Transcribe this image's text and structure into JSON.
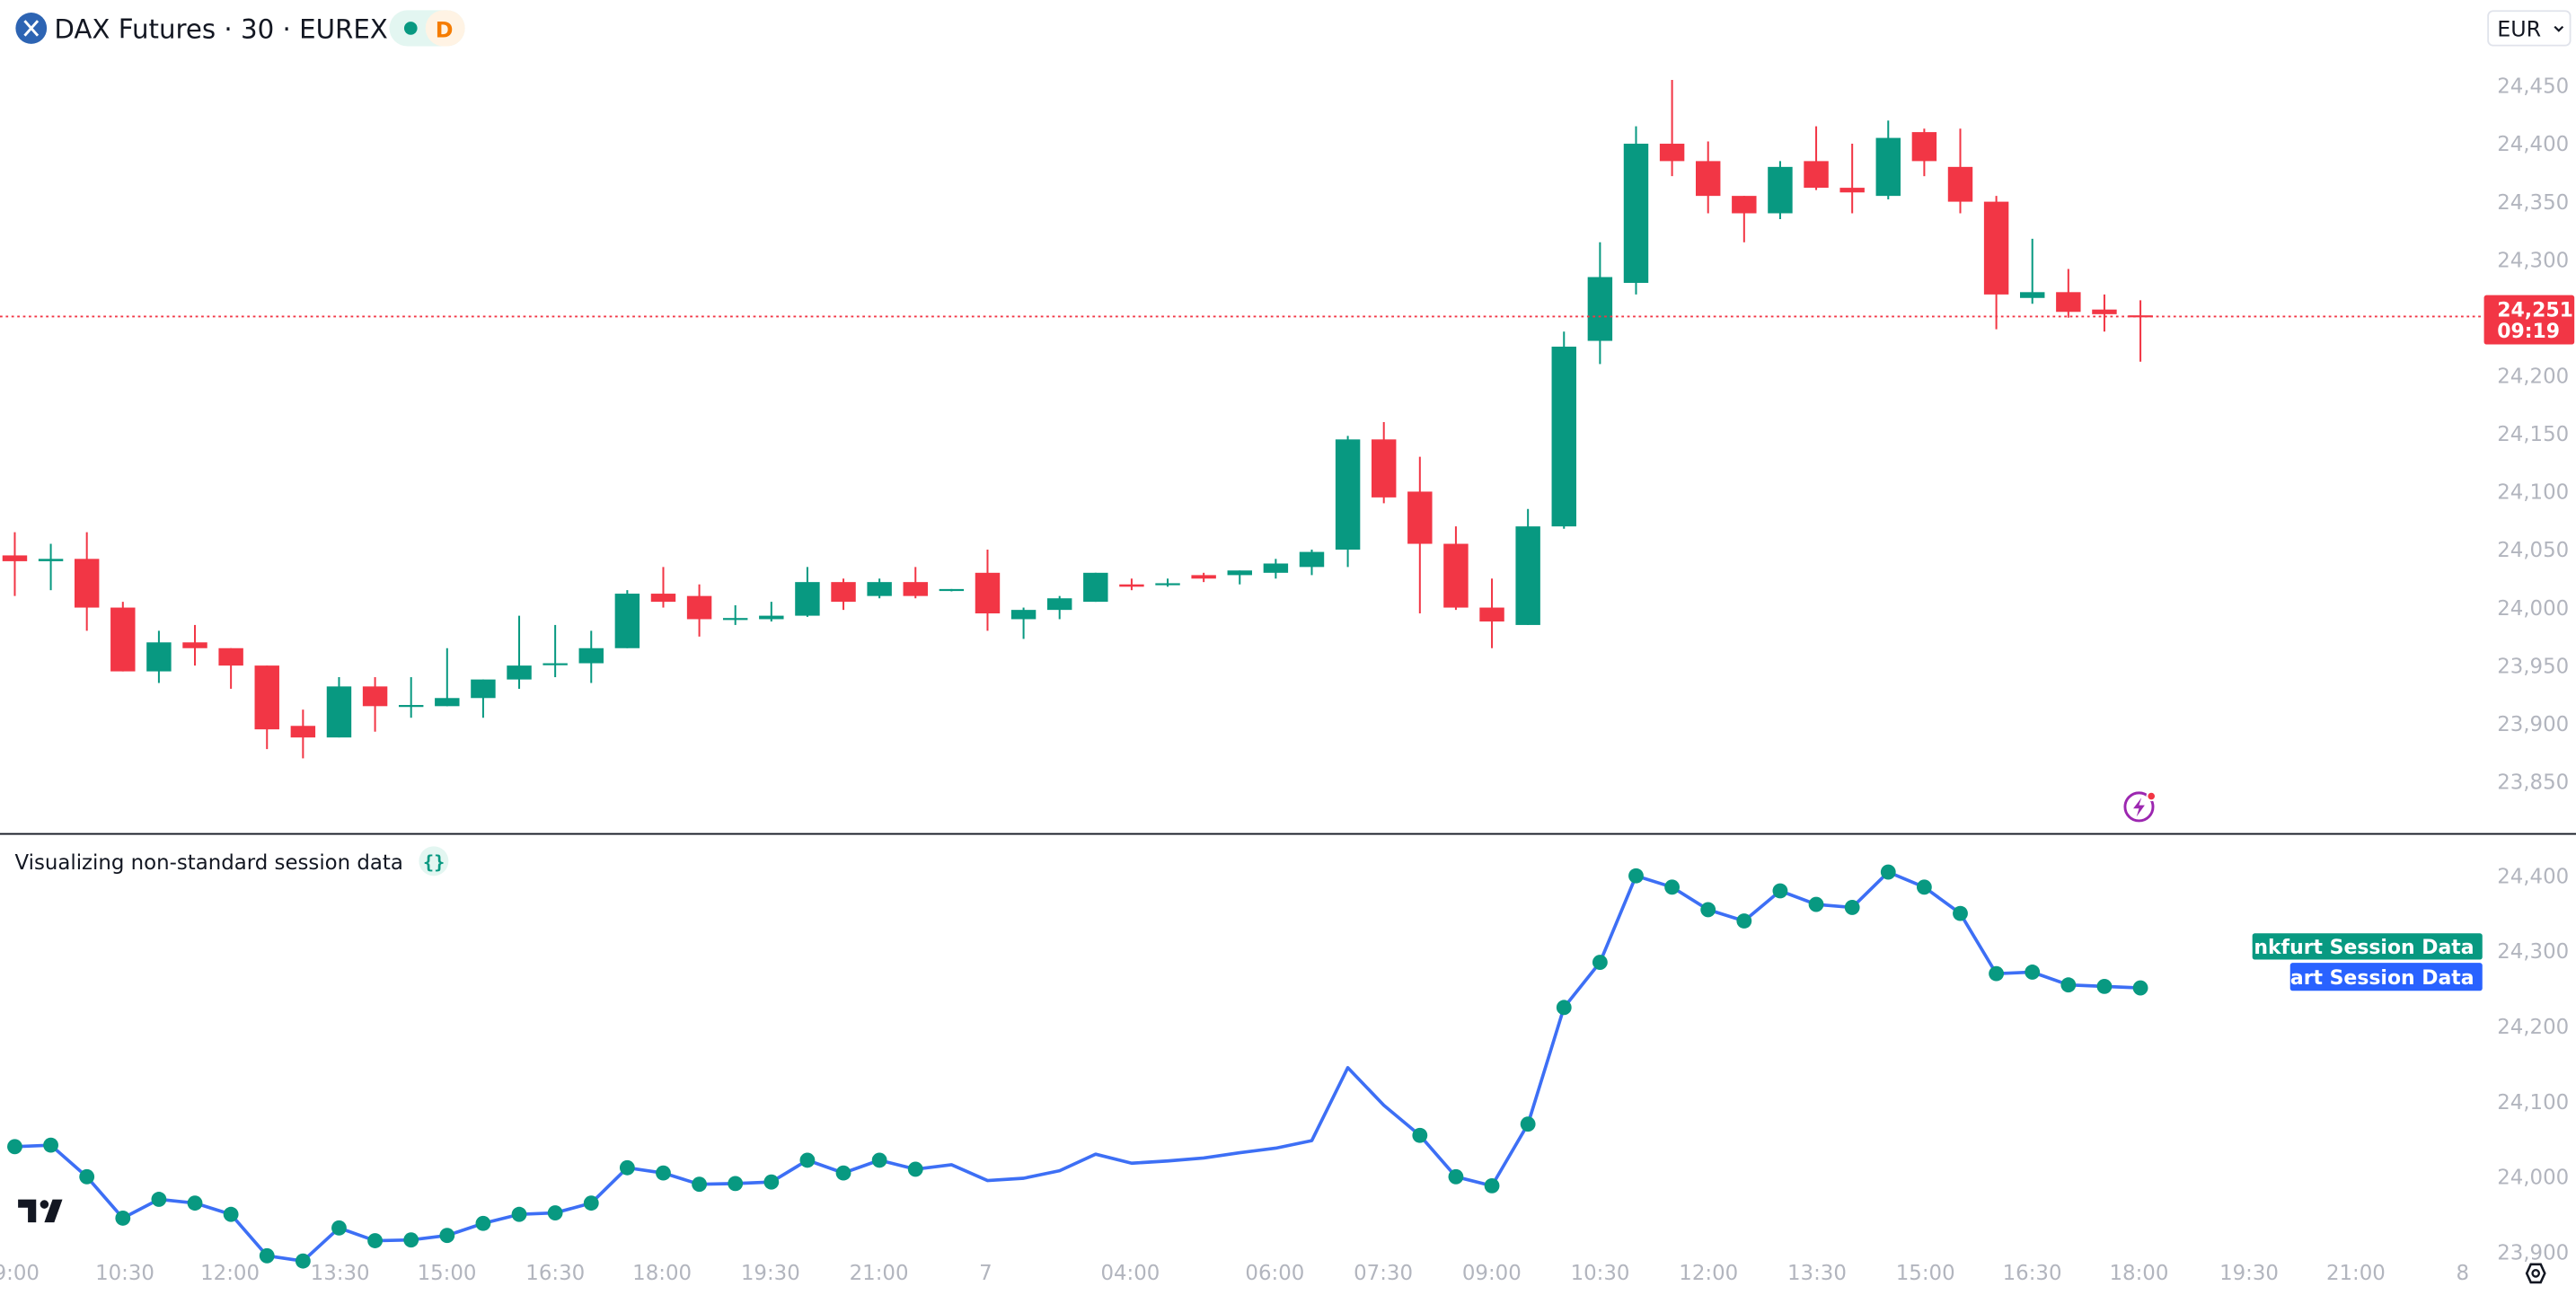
{
  "header": {
    "symbol_title": "DAX Futures · 30 · EUREX",
    "badge_letter": "D",
    "currency": "EUR"
  },
  "colors": {
    "up": "#089981",
    "down": "#f23645",
    "line": "#3d6ff5",
    "dot": "#089981",
    "label_green": "#089981",
    "label_blue": "#2962ff"
  },
  "last_price": {
    "value": "24,251",
    "countdown": "09:19"
  },
  "indicator": {
    "title": "Visualizing non-standard session data",
    "icon": "curly-braces-icon",
    "labels": {
      "frankfurt": "Frankfurt Session Data",
      "chart": "Chart Session Data"
    }
  },
  "chart_data": [
    {
      "type": "candlestick",
      "title": "DAX Futures · 30 · EUREX",
      "ylim": [
        23820,
        24470
      ],
      "yticks": [
        "24,450",
        "24,400",
        "24,350",
        "24,300",
        "24,200",
        "24,150",
        "24,100",
        "24,050",
        "24,000",
        "23,950",
        "23,900",
        "23,850"
      ],
      "ohlc": [
        [
          24045,
          24065,
          24010,
          24040
        ],
        [
          24040,
          24055,
          24015,
          24042
        ],
        [
          24042,
          24065,
          23980,
          24000
        ],
        [
          24000,
          24005,
          23945,
          23945
        ],
        [
          23945,
          23980,
          23935,
          23970
        ],
        [
          23970,
          23985,
          23950,
          23965
        ],
        [
          23965,
          23965,
          23930,
          23950
        ],
        [
          23950,
          23950,
          23878,
          23895
        ],
        [
          23898,
          23912,
          23870,
          23888
        ],
        [
          23888,
          23940,
          23888,
          23932
        ],
        [
          23932,
          23940,
          23893,
          23915
        ],
        [
          23915,
          23940,
          23905,
          23916
        ],
        [
          23915,
          23965,
          23915,
          23922
        ],
        [
          23922,
          23938,
          23905,
          23938
        ],
        [
          23938,
          23993,
          23930,
          23950
        ],
        [
          23951,
          23985,
          23940,
          23952
        ],
        [
          23952,
          23980,
          23935,
          23965
        ],
        [
          23965,
          24015,
          23965,
          24012
        ],
        [
          24012,
          24035,
          24000,
          24005
        ],
        [
          24010,
          24020,
          23975,
          23990
        ],
        [
          23990,
          24002,
          23985,
          23991
        ],
        [
          23990,
          24005,
          23988,
          23993
        ],
        [
          23993,
          24035,
          23992,
          24022
        ],
        [
          24022,
          24025,
          23998,
          24005
        ],
        [
          24010,
          24025,
          24008,
          24022
        ],
        [
          24022,
          24035,
          24008,
          24010
        ],
        [
          24015,
          24016,
          24014,
          24016
        ],
        [
          24030,
          24050,
          23980,
          23995
        ],
        [
          23990,
          24000,
          23973,
          23998
        ],
        [
          23998,
          24010,
          23990,
          24008
        ],
        [
          24005,
          24030,
          24005,
          24030
        ],
        [
          24020,
          24025,
          24015,
          24018
        ],
        [
          24020,
          24025,
          24018,
          24021
        ],
        [
          24028,
          24030,
          24022,
          24025
        ],
        [
          24028,
          24032,
          24020,
          24032
        ],
        [
          24030,
          24042,
          24025,
          24038
        ],
        [
          24035,
          24050,
          24028,
          24048
        ],
        [
          24050,
          24148,
          24035,
          24145
        ],
        [
          24145,
          24160,
          24090,
          24095
        ],
        [
          24100,
          24130,
          23995,
          24055
        ],
        [
          24055,
          24070,
          23998,
          24000
        ],
        [
          24000,
          24025,
          23965,
          23988
        ],
        [
          23985,
          24085,
          23985,
          24070
        ],
        [
          24070,
          24238,
          24068,
          24225
        ],
        [
          24230,
          24315,
          24210,
          24285
        ],
        [
          24280,
          24415,
          24270,
          24400
        ],
        [
          24400,
          24455,
          24372,
          24385
        ],
        [
          24385,
          24402,
          24340,
          24355
        ],
        [
          24355,
          24355,
          24315,
          24340
        ],
        [
          24340,
          24385,
          24335,
          24380
        ],
        [
          24385,
          24415,
          24360,
          24362
        ],
        [
          24362,
          24400,
          24340,
          24358
        ],
        [
          24355,
          24420,
          24352,
          24405
        ],
        [
          24410,
          24413,
          24372,
          24385
        ],
        [
          24380,
          24413,
          24340,
          24350
        ],
        [
          24350,
          24355,
          24240,
          24270
        ],
        [
          24267,
          24318,
          24262,
          24272
        ],
        [
          24272,
          24292,
          24250,
          24255
        ],
        [
          24257,
          24270,
          24238,
          24253
        ],
        [
          24252,
          24265,
          24212,
          24251
        ]
      ],
      "last_price": 24251
    },
    {
      "type": "line",
      "title": "Visualizing non-standard session data",
      "ylim": [
        23850,
        24420
      ],
      "yticks": [
        "24,400",
        "24,300",
        "24,200",
        "24,100",
        "24,000",
        "23,900"
      ],
      "series": [
        {
          "name": "Chart Session Data",
          "values": [
            24040,
            24042,
            24000,
            23945,
            23970,
            23965,
            23950,
            23895,
            23888,
            23932,
            23915,
            23916,
            23922,
            23938,
            23950,
            23952,
            23965,
            24012,
            24005,
            23990,
            23991,
            23993,
            24022,
            24005,
            24022,
            24010,
            24016,
            23995,
            23998,
            24008,
            24030,
            24018,
            24021,
            24025,
            24032,
            24038,
            24048,
            24145,
            24095,
            24055,
            24000,
            23988,
            24070,
            24225,
            24285,
            24400,
            24385,
            24355,
            24340,
            24380,
            24362,
            24358,
            24405,
            24385,
            24350,
            24270,
            24272,
            24255,
            24253,
            24251
          ]
        },
        {
          "name": "Frankfurt Session Data",
          "values": [
            24040,
            24042,
            24000,
            23945,
            23970,
            23965,
            23950,
            23895,
            23888,
            23932,
            23915,
            23916,
            23922,
            23938,
            23950,
            23952,
            23965,
            24012,
            24005,
            23990,
            23991,
            23993,
            24022,
            24005,
            24022,
            24010,
            null,
            null,
            null,
            null,
            null,
            null,
            null,
            null,
            null,
            null,
            null,
            null,
            null,
            24055,
            24000,
            23988,
            24070,
            24225,
            24285,
            24400,
            24385,
            24355,
            24340,
            24380,
            24362,
            24358,
            24405,
            24385,
            24350,
            24270,
            24272,
            24255,
            24253,
            24251
          ]
        }
      ]
    }
  ],
  "xaxis": {
    "ticks": [
      "9:00",
      "10:30",
      "12:00",
      "13:30",
      "15:00",
      "16:30",
      "18:00",
      "19:30",
      "21:00",
      "7",
      "04:00",
      "06:00",
      "07:30",
      "09:00",
      "10:30",
      "12:00",
      "13:30",
      "15:00",
      "16:30",
      "18:00",
      "19:30",
      "21:00",
      "8"
    ]
  }
}
